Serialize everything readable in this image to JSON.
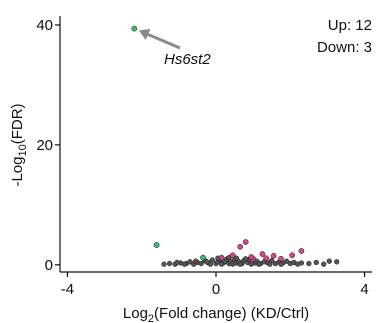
{
  "chart_data": {
    "type": "scatter",
    "title": "",
    "xlabel": {
      "prefix": "Log",
      "sub": "2",
      "suffix": "(Fold change) (KD/Ctrl)"
    },
    "ylabel": {
      "prefix": "-Log",
      "sub": "10",
      "suffix": "(FDR)"
    },
    "xlim": [
      -4.2,
      4.2
    ],
    "ylim": [
      -1.2,
      41.5
    ],
    "xticks": [
      -4,
      0,
      4
    ],
    "yticks": [
      0,
      20,
      40
    ],
    "grid": false,
    "annotations": {
      "up_label": "Up: 12",
      "down_label": "Down: 3"
    },
    "highlight": {
      "gene": "Hs6st2",
      "x": -2.2,
      "y": 39.4
    },
    "colors": {
      "up": "#d6448f",
      "down": "#2fbf6f",
      "ns": "#555555",
      "arrow": "#8a8a8a"
    },
    "series": [
      {
        "key": "up",
        "points": [
          [
            0.15,
            1.2
          ],
          [
            0.45,
            1.6
          ],
          [
            0.65,
            3.0
          ],
          [
            0.8,
            3.8
          ],
          [
            1.0,
            1.0
          ],
          [
            1.25,
            1.8
          ],
          [
            1.35,
            1.1
          ],
          [
            1.55,
            1.5
          ],
          [
            1.75,
            1.0
          ],
          [
            2.05,
            1.6
          ],
          [
            2.3,
            2.3
          ],
          [
            0.95,
            1.3
          ]
        ]
      },
      {
        "key": "down",
        "points": [
          [
            -2.2,
            39.4
          ],
          [
            -1.6,
            3.3
          ],
          [
            -0.35,
            1.2
          ]
        ]
      },
      {
        "key": "ns",
        "points": [
          [
            -1.4,
            0.1
          ],
          [
            -1.25,
            0.2
          ],
          [
            -1.1,
            0.1
          ],
          [
            -0.95,
            0.3
          ],
          [
            -0.8,
            0.2
          ],
          [
            -0.7,
            0.5
          ],
          [
            -0.6,
            0.1
          ],
          [
            -0.5,
            0.4
          ],
          [
            -0.4,
            0.2
          ],
          [
            -0.3,
            0.7
          ],
          [
            -0.2,
            0.3
          ],
          [
            -0.1,
            0.8
          ],
          [
            0.0,
            0.2
          ],
          [
            0.05,
            0.5
          ],
          [
            0.1,
            0.9
          ],
          [
            0.2,
            0.3
          ],
          [
            0.25,
            0.6
          ],
          [
            0.3,
            1.0
          ],
          [
            0.35,
            0.2
          ],
          [
            0.4,
            0.5
          ],
          [
            0.5,
            0.8
          ],
          [
            0.55,
            0.3
          ],
          [
            0.6,
            0.6
          ],
          [
            0.7,
            0.2
          ],
          [
            0.75,
            0.7
          ],
          [
            0.85,
            0.4
          ],
          [
            0.9,
            0.9
          ],
          [
            1.05,
            0.3
          ],
          [
            1.1,
            0.6
          ],
          [
            1.2,
            0.2
          ],
          [
            1.3,
            0.5
          ],
          [
            1.4,
            0.3
          ],
          [
            1.5,
            0.7
          ],
          [
            1.6,
            0.2
          ],
          [
            1.7,
            0.5
          ],
          [
            1.8,
            0.3
          ],
          [
            1.9,
            0.6
          ],
          [
            2.0,
            0.2
          ],
          [
            2.1,
            0.4
          ],
          [
            2.2,
            0.1
          ],
          [
            2.3,
            0.3
          ],
          [
            2.5,
            0.2
          ],
          [
            2.7,
            0.4
          ],
          [
            2.9,
            0.1
          ],
          [
            3.05,
            0.6
          ],
          [
            3.25,
            0.5
          ],
          [
            -0.15,
            0.1
          ],
          [
            0.15,
            0.1
          ],
          [
            0.45,
            0.1
          ],
          [
            0.65,
            0.1
          ],
          [
            0.95,
            0.1
          ],
          [
            1.15,
            0.1
          ],
          [
            1.45,
            0.1
          ],
          [
            1.75,
            0.1
          ],
          [
            -0.55,
            0.6
          ],
          [
            -0.25,
            0.5
          ],
          [
            0.05,
            1.1
          ],
          [
            0.35,
            1.2
          ],
          [
            0.55,
            1.1
          ],
          [
            0.8,
            1.0
          ],
          [
            -0.85,
            0.1
          ],
          [
            -1.05,
            0.4
          ]
        ]
      }
    ]
  }
}
